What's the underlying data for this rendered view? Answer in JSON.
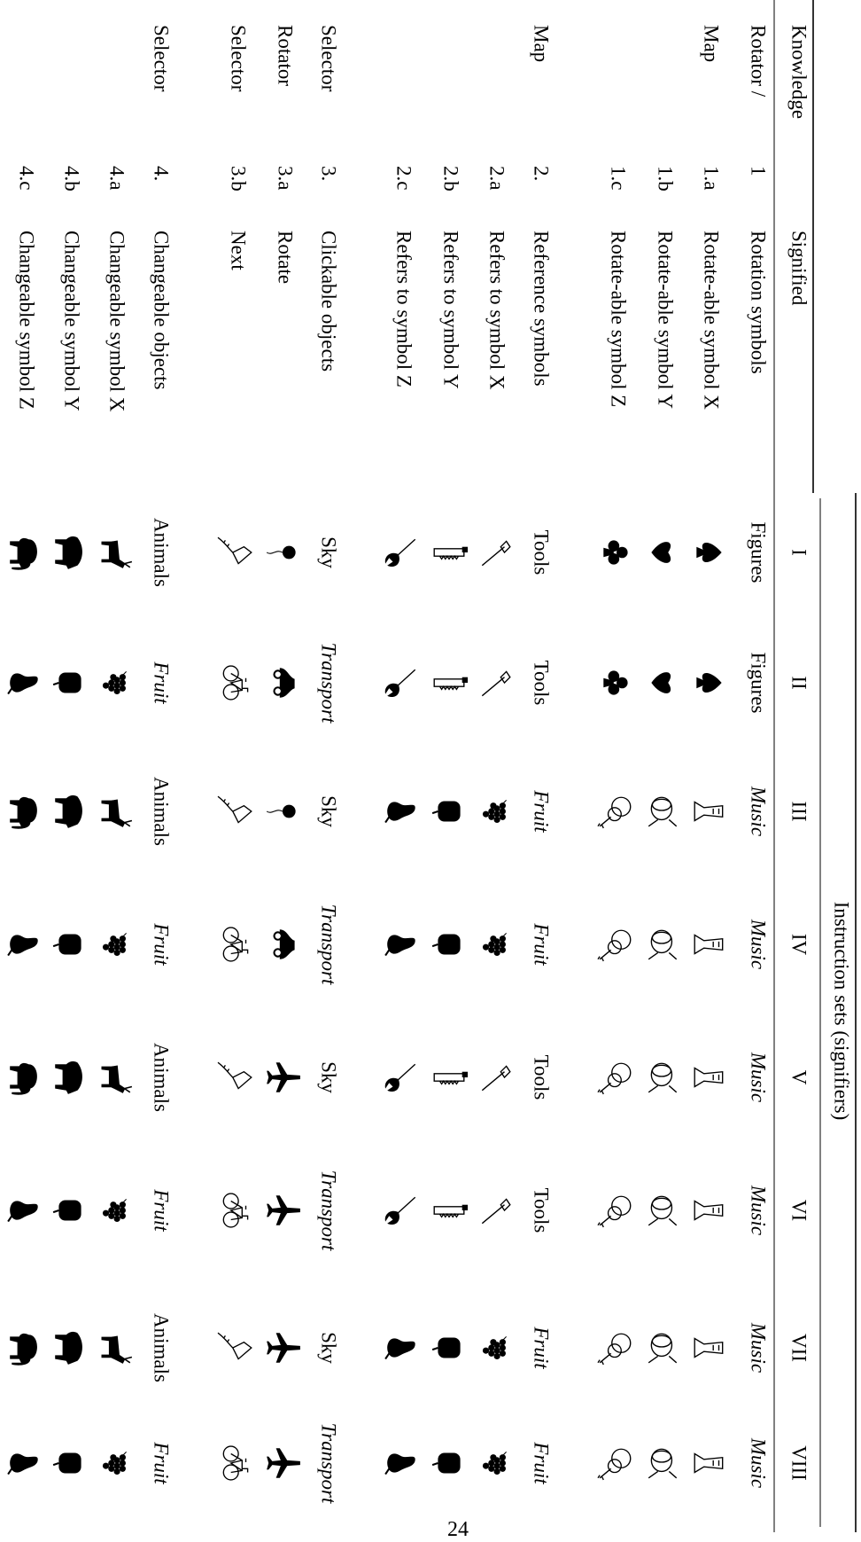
{
  "table": {
    "header": {
      "knowledge": "Knowledge",
      "signified": "Signified",
      "instruction_sets": "Instruction sets (signifiers)",
      "sets": [
        "I",
        "II",
        "III",
        "IV",
        "V",
        "VI",
        "VII",
        "VIII"
      ]
    },
    "rows": [
      {
        "knowledge": "Rotator /",
        "number": "1",
        "signified": "Rotation symbols",
        "cells": [
          "Figures",
          "Figures",
          "Music",
          "Music",
          "Music",
          "Music",
          "Music",
          "Music"
        ]
      },
      {
        "knowledge": "Map",
        "number": "1.a",
        "signified": "Rotate-able symbol X"
      },
      {
        "number": "1.b",
        "signified": "Rotate-able symbol Y"
      },
      {
        "number": "1.c",
        "signified": "Rotate-able symbol Z"
      },
      {
        "knowledge": "Map",
        "number": "2.",
        "signified": "Reference symbols",
        "cells": [
          "Tools",
          "Tools",
          "Fruit",
          "Fruit",
          "Tools",
          "Tools",
          "Fruit",
          "Fruit"
        ]
      },
      {
        "number": "2.a",
        "signified": "Refers to symbol X"
      },
      {
        "number": "2.b",
        "signified": "Refers to symbol Y"
      },
      {
        "number": "2.c",
        "signified": "Refers to symbol Z"
      },
      {
        "knowledge": "Selector",
        "number": "3.",
        "signified": "Clickable objects",
        "cells": [
          "Sky",
          "Transport",
          "Sky",
          "Transport",
          "Sky",
          "Transport",
          "Sky",
          "Transport"
        ]
      },
      {
        "knowledge": "Rotator",
        "number": "3.a",
        "signified": "Rotate"
      },
      {
        "knowledge": "Selector",
        "number": "3.b",
        "signified": "Next"
      },
      {
        "knowledge": "Selector",
        "number": "4.",
        "signified": "Changeable objects",
        "cells": [
          "Animals",
          "Fruit",
          "Animals",
          "Fruit",
          "Animals",
          "Fruit",
          "Animals",
          "Fruit"
        ]
      },
      {
        "number": "4.a",
        "signified": "Changeable symbol X"
      },
      {
        "number": "4.b",
        "signified": "Changeable symbol Y"
      },
      {
        "number": "4.c",
        "signified": "Changeable symbol Z"
      }
    ]
  },
  "page_number": "24"
}
